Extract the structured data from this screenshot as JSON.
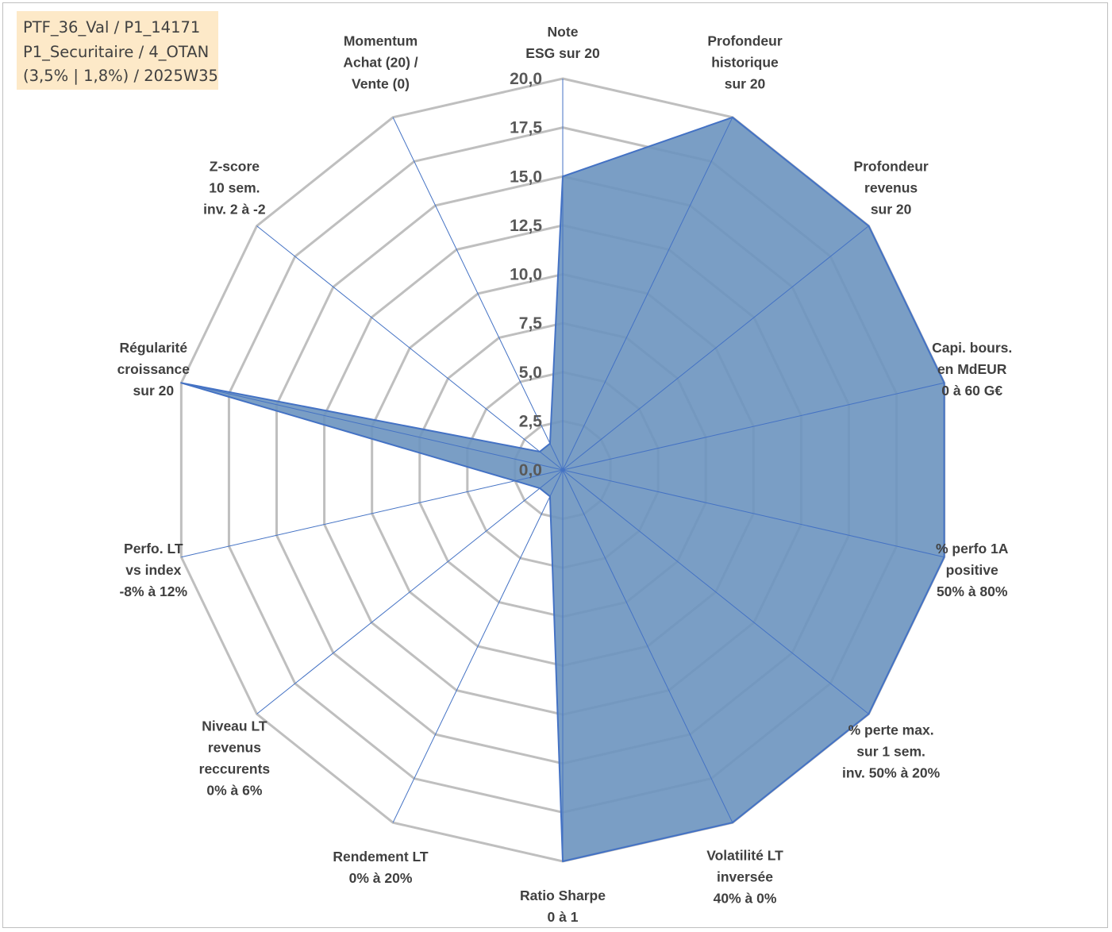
{
  "info_box": {
    "line1": "PTF_36_Val / P1_14171",
    "line2": "P1_Securitaire / 4_OTAN",
    "line3": "(3,5% | 1,8%) / 2025W35"
  },
  "chart_data": {
    "type": "radar",
    "rmax": 20,
    "ticks": [
      "0,0",
      "2,5",
      "5,0",
      "7,5",
      "10,0",
      "12,5",
      "15,0",
      "17,5",
      "20,0"
    ],
    "grid": true,
    "axes": [
      [
        "Note",
        "ESG sur 20"
      ],
      [
        "Profondeur",
        "historique",
        "sur 20"
      ],
      [
        "Profondeur",
        "revenus",
        "sur 20"
      ],
      [
        "Capi. bours.",
        "en MdEUR",
        "0 à 60 G€"
      ],
      [
        "% perfo 1A",
        "positive",
        "50% à 80%"
      ],
      [
        "% perte max.",
        "sur 1 sem.",
        "inv. 50% à 20%"
      ],
      [
        "Volatilité LT",
        "inversée",
        "40% à 0%"
      ],
      [
        "Ratio Sharpe",
        "0 à 1"
      ],
      [
        "Rendement LT",
        "0% à 20%"
      ],
      [
        "Niveau LT",
        "revenus",
        "reccurents",
        "0% à 6%"
      ],
      [
        "Perfo. LT",
        "vs index",
        "-8% à 12%"
      ],
      [
        "Régularité",
        "croissance",
        "sur 20"
      ],
      [
        "Z-score",
        "10 sem.",
        "inv. 2 à -2"
      ],
      [
        "Momentum",
        "Achat (20) /",
        "Vente (0)"
      ]
    ],
    "series": [
      {
        "values": [
          15,
          20,
          20,
          20,
          20,
          20,
          20,
          20,
          1.5,
          1.5,
          2.5,
          20,
          1.5,
          1.5
        ]
      }
    ],
    "colors": {
      "fill": "#6b93bf",
      "stroke": "#4472c4",
      "spokes": "#4472c4",
      "grid": "#bfbfbf"
    }
  }
}
